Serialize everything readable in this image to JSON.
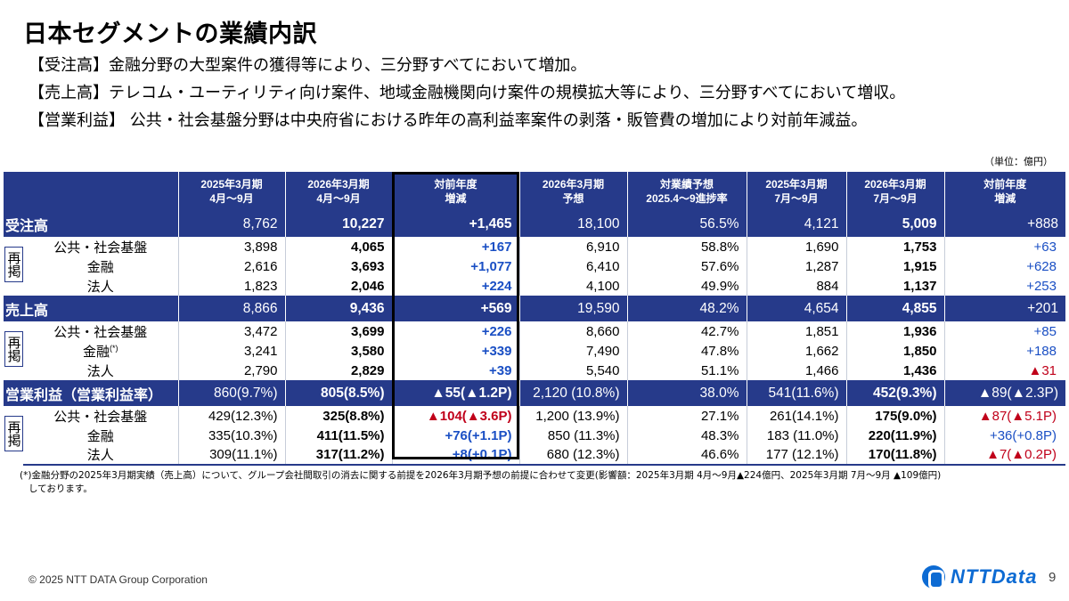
{
  "title": "日本セグメントの業績内訳",
  "bullets": [
    "【受注高】金融分野の大型案件の獲得等により、三分野すべてにおいて増加。",
    "【売上高】テレコム・ユーティリティ向け案件、地域金融機関向け案件の規模拡大等により、三分野すべてにおいて増収。",
    "【営業利益】 公共・社会基盤分野は中央府省における昨年の高利益率案件の剥落・販管費の増加により対前年減益。"
  ],
  "unit": "（単位：億円）",
  "headers": [
    {
      "l1": "2025年3月期",
      "l2": "4月～9月"
    },
    {
      "l1": "2026年3月期",
      "l2": "4月～9月"
    },
    {
      "l1": "対前年度",
      "l2": "増減"
    },
    {
      "l1": "2026年3月期",
      "l2": "予想"
    },
    {
      "l1": "対業績予想",
      "l2": "2025.4～9進捗率"
    },
    {
      "l1": "2025年3月期",
      "l2": "7月～9月"
    },
    {
      "l1": "2026年3月期",
      "l2": "7月～9月"
    },
    {
      "l1": "対前年度",
      "l2": "増減"
    }
  ],
  "saikei": "再掲",
  "groups": [
    {
      "label": "受注高",
      "main": [
        "8,762",
        "10,227",
        "+1,465",
        "18,100",
        "56.5%",
        "4,121",
        "5,009",
        "+888"
      ],
      "rows": [
        {
          "label": "公共・社会基盤",
          "values": [
            "3,898",
            "4,065",
            "+167",
            "6,910",
            "58.8%",
            "1,690",
            "1,753",
            "+63"
          ]
        },
        {
          "label": "金融",
          "values": [
            "2,616",
            "3,693",
            "+1,077",
            "6,410",
            "57.6%",
            "1,287",
            "1,915",
            "+628"
          ]
        },
        {
          "label": "法人",
          "values": [
            "1,823",
            "2,046",
            "+224",
            "4,100",
            "49.9%",
            "884",
            "1,137",
            "+253"
          ]
        }
      ]
    },
    {
      "label": "売上高",
      "main": [
        "8,866",
        "9,436",
        "+569",
        "19,590",
        "48.2%",
        "4,654",
        "4,855",
        "+201"
      ],
      "rows": [
        {
          "label": "公共・社会基盤",
          "values": [
            "3,472",
            "3,699",
            "+226",
            "8,660",
            "42.7%",
            "1,851",
            "1,936",
            "+85"
          ]
        },
        {
          "label": "金融",
          "sup": "(*)",
          "values": [
            "3,241",
            "3,580",
            "+339",
            "7,490",
            "47.8%",
            "1,662",
            "1,850",
            "+188"
          ]
        },
        {
          "label": "法人",
          "values": [
            "2,790",
            "2,829",
            "+39",
            "5,540",
            "51.1%",
            "1,466",
            "1,436",
            "▲31"
          ]
        }
      ]
    },
    {
      "label": "営業利益（営業利益率）",
      "main": [
        "860(9.7%)",
        "805(8.5%)",
        "▲55(▲1.2P)",
        "2,120 (10.8%)",
        "38.0%",
        "541(11.6%)",
        "452(9.3%)",
        "▲89(▲2.3P)"
      ],
      "rows": [
        {
          "label": "公共・社会基盤",
          "values": [
            "429(12.3%)",
            "325(8.8%)",
            "▲104(▲3.6P)",
            "1,200 (13.9%)",
            "27.1%",
            "261(14.1%)",
            "175(9.0%)",
            "▲87(▲5.1P)"
          ]
        },
        {
          "label": "金融",
          "values": [
            "335(10.3%)",
            "411(11.5%)",
            "+76(+1.1P)",
            "850 (11.3%)",
            "48.3%",
            "183 (11.0%)",
            "220(11.9%)",
            "+36(+0.8P)"
          ]
        },
        {
          "label": "法人",
          "values": [
            "309(11.1%)",
            "317(11.2%)",
            "+8(+0.1P)",
            "680 (12.3%)",
            "46.6%",
            "177 (12.1%)",
            "170(11.8%)",
            "▲7(▲0.2P)"
          ]
        }
      ]
    }
  ],
  "footnote_line1": "(*)金融分野の2025年3月期実績（売上高）について、グループ会社間取引の消去に関する前提を2026年3月期予想の前提に合わせて変更(影響額：2025年3月期 4月～9月▲224億円、2025年3月期 7月～9月 ▲109億円)",
  "footnote_line2": "しております。",
  "copyright": "© 2025 NTT DATA Group Corporation",
  "logo_text": "NTTData",
  "page_number": "9",
  "colors": {
    "header_bg": "#263a8a",
    "positive": "#1a4fc4",
    "negative": "#c0001a",
    "logo": "#0d6bd3"
  }
}
